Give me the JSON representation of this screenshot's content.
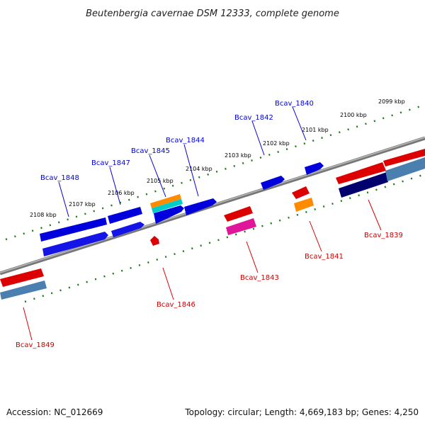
{
  "title": "Beutenbergia cavernae DSM 12333, complete genome",
  "footer": {
    "accession": "Accession: NC_012669",
    "summary": "Topology: circular; Length: 4,669,183 bp; Genes: 4,250"
  },
  "scale": {
    "tick_labels": [
      "2108 kbp",
      "2107 kbp",
      "2106 kbp",
      "2105 kbp",
      "2104 kbp",
      "2103 kbp",
      "2102 kbp",
      "2101 kbp",
      "2100 kbp",
      "2099 kbp"
    ]
  },
  "genes_top": [
    {
      "label": "Bcav_1848"
    },
    {
      "label": "Bcav_1847"
    },
    {
      "label": "Bcav_1845"
    },
    {
      "label": "Bcav_1844"
    },
    {
      "label": "Bcav_1842"
    },
    {
      "label": "Bcav_1840"
    }
  ],
  "genes_bottom": [
    {
      "label": "Bcav_1849"
    },
    {
      "label": "Bcav_1846"
    },
    {
      "label": "Bcav_1843"
    },
    {
      "label": "Bcav_1841"
    },
    {
      "label": "Bcav_1839"
    }
  ],
  "colors": {
    "forward_strand": "#0000dd",
    "reverse_strand": "#dd0000",
    "backbone": "#888888",
    "scale_dashes": "#1e7a1e",
    "rrna_orange": "#ff8c00",
    "rrna_cyan": "#00cccc",
    "pink": "#e0169a",
    "navy": "#00006e",
    "steel": "#4a7fb0"
  }
}
